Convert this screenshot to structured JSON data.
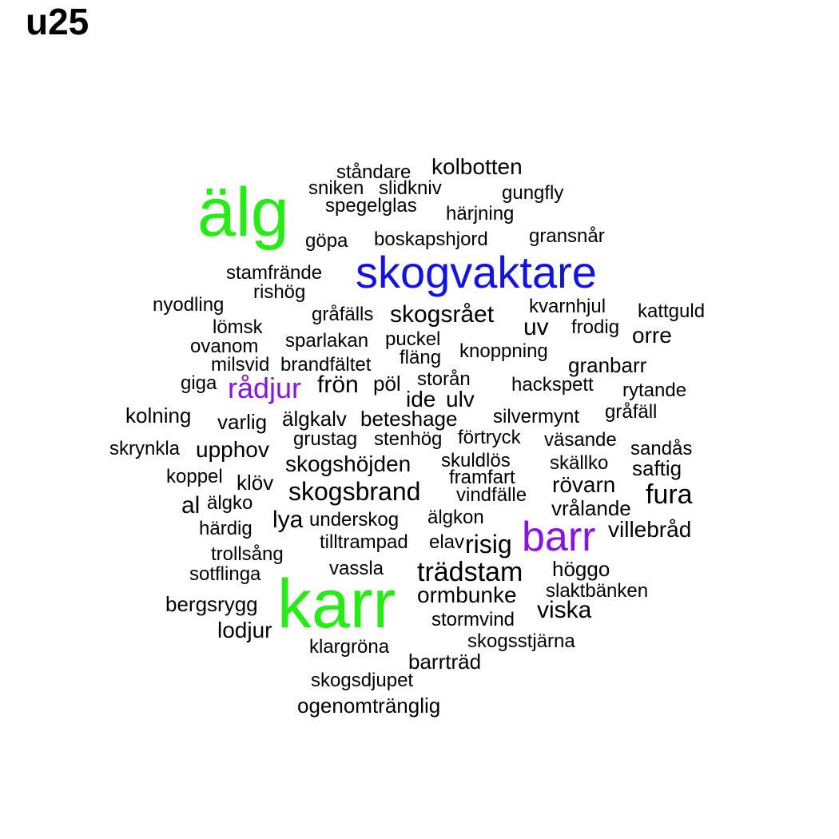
{
  "title": "u25",
  "colors": {
    "green": "#22ee11",
    "blue": "#1111ee",
    "purple": "#8811ee",
    "black": "#000000"
  },
  "words": [
    {
      "text": "älg",
      "color": "green"
    },
    {
      "text": "skogvaktare",
      "color": "blue"
    },
    {
      "text": "karr",
      "color": "green"
    },
    {
      "text": "barr",
      "color": "purple"
    },
    {
      "text": "rådjur",
      "color": "purple"
    },
    {
      "text": "ståndare",
      "color": "black"
    },
    {
      "text": "kolbotten",
      "color": "black"
    },
    {
      "text": "sniken",
      "color": "black"
    },
    {
      "text": "slidkniv",
      "color": "black"
    },
    {
      "text": "gungfly",
      "color": "black"
    },
    {
      "text": "spegelglas",
      "color": "black"
    },
    {
      "text": "härjning",
      "color": "black"
    },
    {
      "text": "göpa",
      "color": "black"
    },
    {
      "text": "boskapshjord",
      "color": "black"
    },
    {
      "text": "gransnår",
      "color": "black"
    },
    {
      "text": "stamfrände",
      "color": "black"
    },
    {
      "text": "rishög",
      "color": "black"
    },
    {
      "text": "nyodling",
      "color": "black"
    },
    {
      "text": "gråfälls",
      "color": "black"
    },
    {
      "text": "skogsrået",
      "color": "black"
    },
    {
      "text": "kvarnhjul",
      "color": "black"
    },
    {
      "text": "kattguld",
      "color": "black"
    },
    {
      "text": "lömsk",
      "color": "black"
    },
    {
      "text": "uv",
      "color": "black"
    },
    {
      "text": "frodig",
      "color": "black"
    },
    {
      "text": "orre",
      "color": "black"
    },
    {
      "text": "sparlakan",
      "color": "black"
    },
    {
      "text": "puckel",
      "color": "black"
    },
    {
      "text": "ovanom",
      "color": "black"
    },
    {
      "text": "knoppning",
      "color": "black"
    },
    {
      "text": "fläng",
      "color": "black"
    },
    {
      "text": "milsvid",
      "color": "black"
    },
    {
      "text": "brandfältet",
      "color": "black"
    },
    {
      "text": "granbarr",
      "color": "black"
    },
    {
      "text": "giga",
      "color": "black"
    },
    {
      "text": "frön",
      "color": "black"
    },
    {
      "text": "pöl",
      "color": "black"
    },
    {
      "text": "storån",
      "color": "black"
    },
    {
      "text": "hackspett",
      "color": "black"
    },
    {
      "text": "rytande",
      "color": "black"
    },
    {
      "text": "ide",
      "color": "black"
    },
    {
      "text": "ulv",
      "color": "black"
    },
    {
      "text": "kolning",
      "color": "black"
    },
    {
      "text": "varlig",
      "color": "black"
    },
    {
      "text": "älgkalv",
      "color": "black"
    },
    {
      "text": "beteshage",
      "color": "black"
    },
    {
      "text": "silvermynt",
      "color": "black"
    },
    {
      "text": "gråfäll",
      "color": "black"
    },
    {
      "text": "grustag",
      "color": "black"
    },
    {
      "text": "stenhög",
      "color": "black"
    },
    {
      "text": "förtryck",
      "color": "black"
    },
    {
      "text": "väsande",
      "color": "black"
    },
    {
      "text": "skrynkla",
      "color": "black"
    },
    {
      "text": "upphov",
      "color": "black"
    },
    {
      "text": "sandås",
      "color": "black"
    },
    {
      "text": "skogshöjden",
      "color": "black"
    },
    {
      "text": "skuldlös",
      "color": "black"
    },
    {
      "text": "skällko",
      "color": "black"
    },
    {
      "text": "saftig",
      "color": "black"
    },
    {
      "text": "koppel",
      "color": "black"
    },
    {
      "text": "klöv",
      "color": "black"
    },
    {
      "text": "framfart",
      "color": "black"
    },
    {
      "text": "skogsbrand",
      "color": "black"
    },
    {
      "text": "rövarn",
      "color": "black"
    },
    {
      "text": "vindfälle",
      "color": "black"
    },
    {
      "text": "fura",
      "color": "black"
    },
    {
      "text": "al",
      "color": "black"
    },
    {
      "text": "älgko",
      "color": "black"
    },
    {
      "text": "vrålande",
      "color": "black"
    },
    {
      "text": "lya",
      "color": "black"
    },
    {
      "text": "underskog",
      "color": "black"
    },
    {
      "text": "älgkon",
      "color": "black"
    },
    {
      "text": "härdig",
      "color": "black"
    },
    {
      "text": "villebråd",
      "color": "black"
    },
    {
      "text": "tilltrampad",
      "color": "black"
    },
    {
      "text": "elav",
      "color": "black"
    },
    {
      "text": "risig",
      "color": "black"
    },
    {
      "text": "trollsång",
      "color": "black"
    },
    {
      "text": "sotflinga",
      "color": "black"
    },
    {
      "text": "vassla",
      "color": "black"
    },
    {
      "text": "trädstam",
      "color": "black"
    },
    {
      "text": "höggo",
      "color": "black"
    },
    {
      "text": "ormbunke",
      "color": "black"
    },
    {
      "text": "slaktbänken",
      "color": "black"
    },
    {
      "text": "bergsrygg",
      "color": "black"
    },
    {
      "text": "viska",
      "color": "black"
    },
    {
      "text": "stormvind",
      "color": "black"
    },
    {
      "text": "lodjur",
      "color": "black"
    },
    {
      "text": "skogsstjärna",
      "color": "black"
    },
    {
      "text": "klargröna",
      "color": "black"
    },
    {
      "text": "barrträd",
      "color": "black"
    },
    {
      "text": "skogsdjupet",
      "color": "black"
    },
    {
      "text": "ogenomtränglig",
      "color": "black"
    }
  ]
}
